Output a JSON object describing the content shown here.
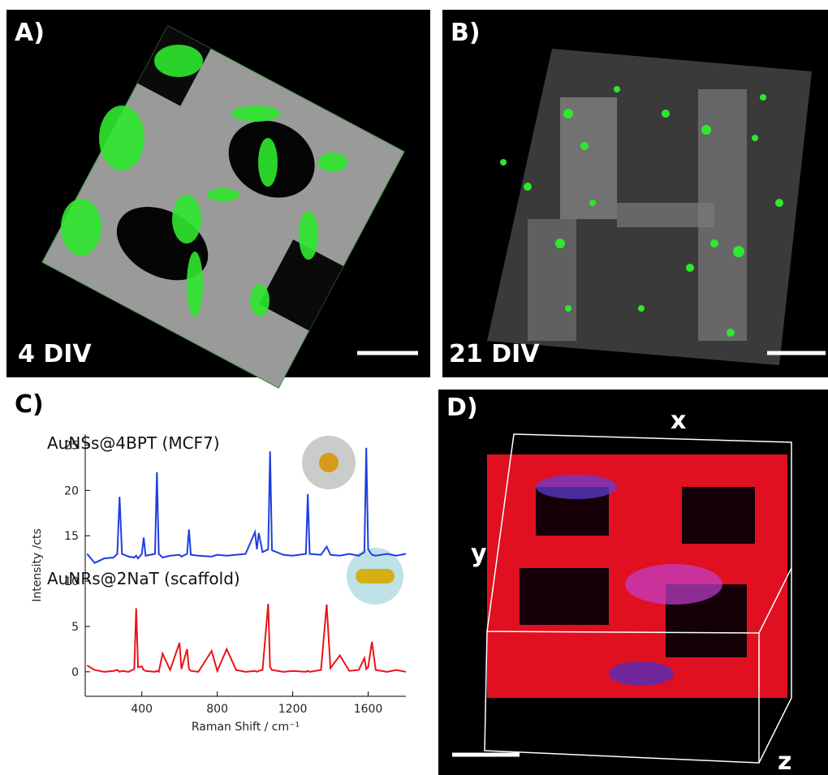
{
  "panels": [
    {
      "label": "A)",
      "caption": "4 DIV"
    },
    {
      "label": "B)",
      "caption": "21 DIV"
    },
    {
      "label": "C)"
    },
    {
      "label": "D)",
      "axes": [
        "x",
        "y",
        "z"
      ]
    }
  ],
  "chart_data": {
    "type": "line",
    "xlabel": "Raman Shift / cm⁻¹",
    "ylabel": "Intensity /cts",
    "x": [
      110,
      150,
      200,
      250,
      270,
      282,
      295,
      330,
      360,
      370,
      380,
      400,
      410,
      420,
      470,
      480,
      490,
      510,
      550,
      600,
      610,
      640,
      650,
      660,
      700,
      770,
      800,
      850,
      900,
      950,
      1000,
      1010,
      1020,
      1040,
      1070,
      1080,
      1090,
      1150,
      1200,
      1270,
      1280,
      1290,
      1350,
      1380,
      1400,
      1450,
      1500,
      1550,
      1580,
      1590,
      1600,
      1620,
      1640,
      1700,
      1750,
      1800
    ],
    "series": [
      {
        "name": "AuNSs@4BPT (MCF7)",
        "color": "#1f3fe0",
        "values": [
          13,
          12,
          12.5,
          12.6,
          13,
          19.3,
          13,
          12.7,
          12.6,
          12.8,
          12.5,
          13,
          14.8,
          12.8,
          13,
          22,
          13,
          12.6,
          12.8,
          12.9,
          12.7,
          13,
          15.7,
          12.9,
          12.8,
          12.7,
          12.9,
          12.8,
          12.9,
          13,
          15.4,
          13.5,
          15.3,
          13.2,
          13.5,
          24.3,
          13.4,
          12.9,
          12.8,
          13,
          19.6,
          13,
          12.9,
          13.8,
          12.9,
          12.8,
          13,
          12.8,
          13.2,
          24.7,
          13.5,
          12.9,
          12.8,
          13,
          12.8,
          13
        ]
      },
      {
        "name": "AuNRs@2NaT (scaffold)",
        "color": "#e8141a",
        "values": [
          0.7,
          0.2,
          0,
          0.1,
          0.2,
          0,
          0.1,
          0,
          0.3,
          7,
          0.5,
          0.6,
          0.2,
          0.1,
          0,
          0.1,
          0,
          2,
          0.2,
          3.2,
          0.3,
          2.5,
          0.3,
          0.1,
          0,
          2.3,
          0.1,
          2.5,
          0.2,
          0,
          0.1,
          0,
          0.1,
          0.2,
          7.5,
          0.5,
          0.2,
          0,
          0.1,
          0,
          0.1,
          0,
          0.2,
          7.4,
          0.4,
          1.8,
          0.1,
          0.2,
          1.5,
          0.3,
          0.5,
          3.3,
          0.2,
          0,
          0.2,
          0
        ]
      }
    ],
    "xlim": [
      100,
      1800
    ],
    "ylim": [
      -2.7,
      26.2
    ],
    "xticks": [
      400,
      800,
      1200,
      1600
    ],
    "yticks": [
      0,
      5,
      10,
      15,
      20,
      25
    ]
  }
}
